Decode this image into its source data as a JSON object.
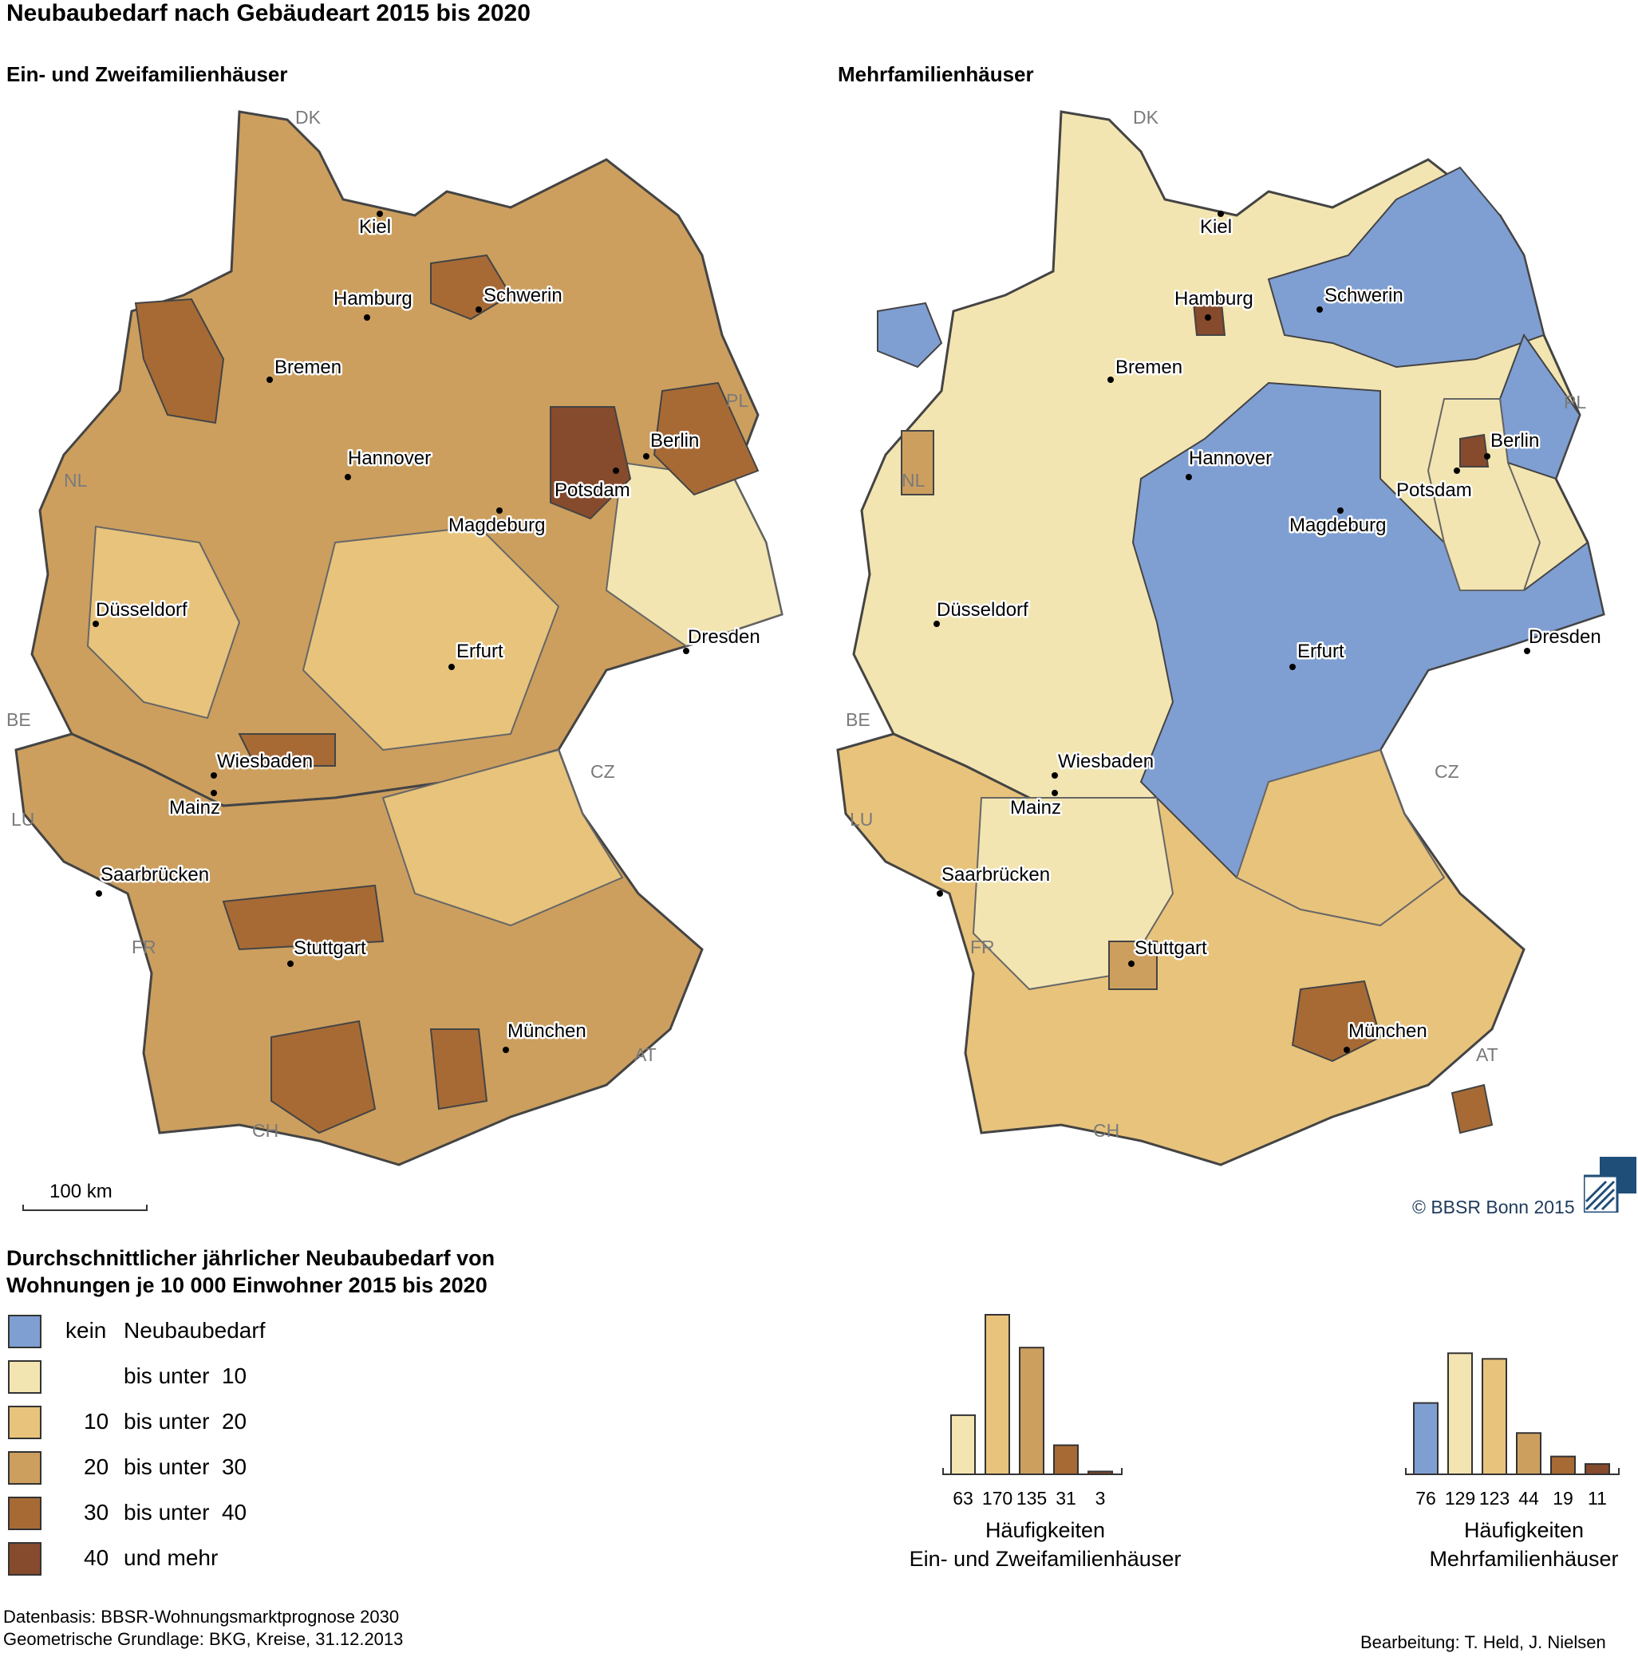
{
  "title": "Neubaubedarf nach Gebäudeart 2015 bis 2020",
  "maps": [
    {
      "title": "Ein- und Zweifamilienhäuser",
      "cities": [
        {
          "name": "Kiel"
        },
        {
          "name": "Hamburg"
        },
        {
          "name": "Schwerin"
        },
        {
          "name": "Bremen"
        },
        {
          "name": "Hannover"
        },
        {
          "name": "Berlin"
        },
        {
          "name": "Potsdam"
        },
        {
          "name": "Magdeburg"
        },
        {
          "name": "Düsseldorf"
        },
        {
          "name": "Erfurt"
        },
        {
          "name": "Dresden"
        },
        {
          "name": "Wiesbaden"
        },
        {
          "name": "Mainz"
        },
        {
          "name": "Saarbrücken"
        },
        {
          "name": "Stuttgart"
        },
        {
          "name": "München"
        }
      ],
      "countries": [
        "DK",
        "NL",
        "PL",
        "BE",
        "LU",
        "CZ",
        "FR",
        "AT",
        "CH"
      ]
    },
    {
      "title": "Mehrfamilienhäuser",
      "cities": [
        {
          "name": "Kiel"
        },
        {
          "name": "Hamburg"
        },
        {
          "name": "Schwerin"
        },
        {
          "name": "Bremen"
        },
        {
          "name": "Hannover"
        },
        {
          "name": "Berlin"
        },
        {
          "name": "Potsdam"
        },
        {
          "name": "Magdeburg"
        },
        {
          "name": "Düsseldorf"
        },
        {
          "name": "Erfurt"
        },
        {
          "name": "Dresden"
        },
        {
          "name": "Wiesbaden"
        },
        {
          "name": "Mainz"
        },
        {
          "name": "Saarbrücken"
        },
        {
          "name": "Stuttgart"
        },
        {
          "name": "München"
        }
      ],
      "countries": [
        "DK",
        "NL",
        "PL",
        "BE",
        "LU",
        "CZ",
        "FR",
        "AT",
        "CH"
      ]
    }
  ],
  "scalebar": {
    "label": "100 km"
  },
  "copyright": "© BBSR Bonn 2015",
  "legend": {
    "title_line1": "Durchschnittlicher jährlicher Neubaubedarf von",
    "title_line2": "Wohnungen je 10 000 Einwohner 2015 bis 2020",
    "classes": [
      {
        "from": "kein",
        "label": "Neubaubedarf",
        "color": "#7f9fd3"
      },
      {
        "from": "",
        "label": "bis unter  10",
        "color": "#f3e5b1"
      },
      {
        "from": "10",
        "label": "bis unter  20",
        "color": "#e8c37c"
      },
      {
        "from": "20",
        "label": "bis unter  30",
        "color": "#cc9f5f"
      },
      {
        "from": "30",
        "label": "bis unter  40",
        "color": "#a76a35"
      },
      {
        "from": "40",
        "label": "und mehr",
        "color": "#864a2c"
      }
    ]
  },
  "chart_data": [
    {
      "type": "bar",
      "categories": [
        "bis unter 10",
        "10 bis unter 20",
        "20 bis unter 30",
        "30 bis unter 40",
        "40 und mehr"
      ],
      "values": [
        63,
        170,
        135,
        31,
        3
      ],
      "colors": [
        "#f3e5b1",
        "#e8c37c",
        "#cc9f5f",
        "#a76a35",
        "#864a2c"
      ],
      "caption_line1": "Häufigkeiten",
      "caption_line2": "Ein- und Zweifamilienhäuser"
    },
    {
      "type": "bar",
      "categories": [
        "kein Neubaubedarf",
        "bis unter 10",
        "10 bis unter 20",
        "20 bis unter 30",
        "30 bis unter 40",
        "40 und mehr"
      ],
      "values": [
        76,
        129,
        123,
        44,
        19,
        11
      ],
      "colors": [
        "#7f9fd3",
        "#f3e5b1",
        "#e8c37c",
        "#cc9f5f",
        "#a76a35",
        "#864a2c"
      ],
      "caption_line1": "Häufigkeiten",
      "caption_line2": "Mehrfamilienhäuser"
    }
  ],
  "footer": {
    "source1": "Datenbasis: BBSR-Wohnungsmarktprognose 2030",
    "source2": "Geometrische Grundlage: BKG, Kreise, 31.12.2013",
    "author": "Bearbeitung: T. Held, J. Nielsen"
  }
}
